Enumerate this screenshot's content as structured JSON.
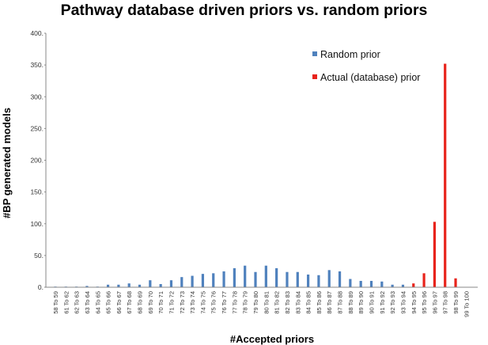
{
  "chart_data": {
    "type": "bar",
    "title": "Pathway database driven priors vs. random priors",
    "xlabel": "#Accepted priors",
    "ylabel": "#BP generated models",
    "ylim": [
      0,
      400
    ],
    "yticks": [
      "0.",
      "50.",
      "100.",
      "150.",
      "200.",
      "250.",
      "300.",
      "350.",
      "400."
    ],
    "grid": false,
    "legend_position": "top-right",
    "categories": [
      "58 To 59",
      "61 To 62",
      "62 To 63",
      "63 To 64",
      "64 To 65",
      "65 To 66",
      "66 To 67",
      "67 To 68",
      "68 To 69",
      "69 To 70",
      "70 To 71",
      "71 To 72",
      "72 To 73",
      "73 To 74",
      "74 To 75",
      "75 To 76",
      "76 To 77",
      "77 To 78",
      "78 To 79",
      "79 To 80",
      "80 To 81",
      "81 To 82",
      "82 To 83",
      "83 To 84",
      "84 To 85",
      "85 To 86",
      "86 To 87",
      "87 To 88",
      "88 To 89",
      "89 To 90",
      "90 To 91",
      "91 To 92",
      "92 To 93",
      "93 To 94",
      "94 To 95",
      "95 To 96",
      "96 To 97",
      "97 To 98",
      "98 To 99",
      "99 To 100"
    ],
    "series": [
      {
        "name": "Random prior",
        "color": "#4f81bd",
        "values": [
          1,
          1,
          1,
          2,
          1,
          4,
          4,
          6,
          4,
          11,
          5,
          11,
          16,
          18,
          21,
          22,
          25,
          30,
          34,
          24,
          34,
          30,
          24,
          24,
          20,
          19,
          27,
          25,
          13,
          10,
          10,
          9,
          4,
          4,
          1,
          0,
          0,
          0,
          0,
          0
        ]
      },
      {
        "name": "Actual (database) prior",
        "color": "#e8231b",
        "values": [
          0,
          0,
          0,
          0,
          0,
          0,
          0,
          0,
          0,
          0,
          0,
          0,
          0,
          0,
          0,
          0,
          0,
          0,
          0,
          0,
          0,
          0,
          0,
          0,
          0,
          0,
          0,
          0,
          0,
          0,
          0,
          0,
          0,
          0,
          6,
          22,
          103,
          352,
          14,
          0
        ]
      }
    ]
  }
}
